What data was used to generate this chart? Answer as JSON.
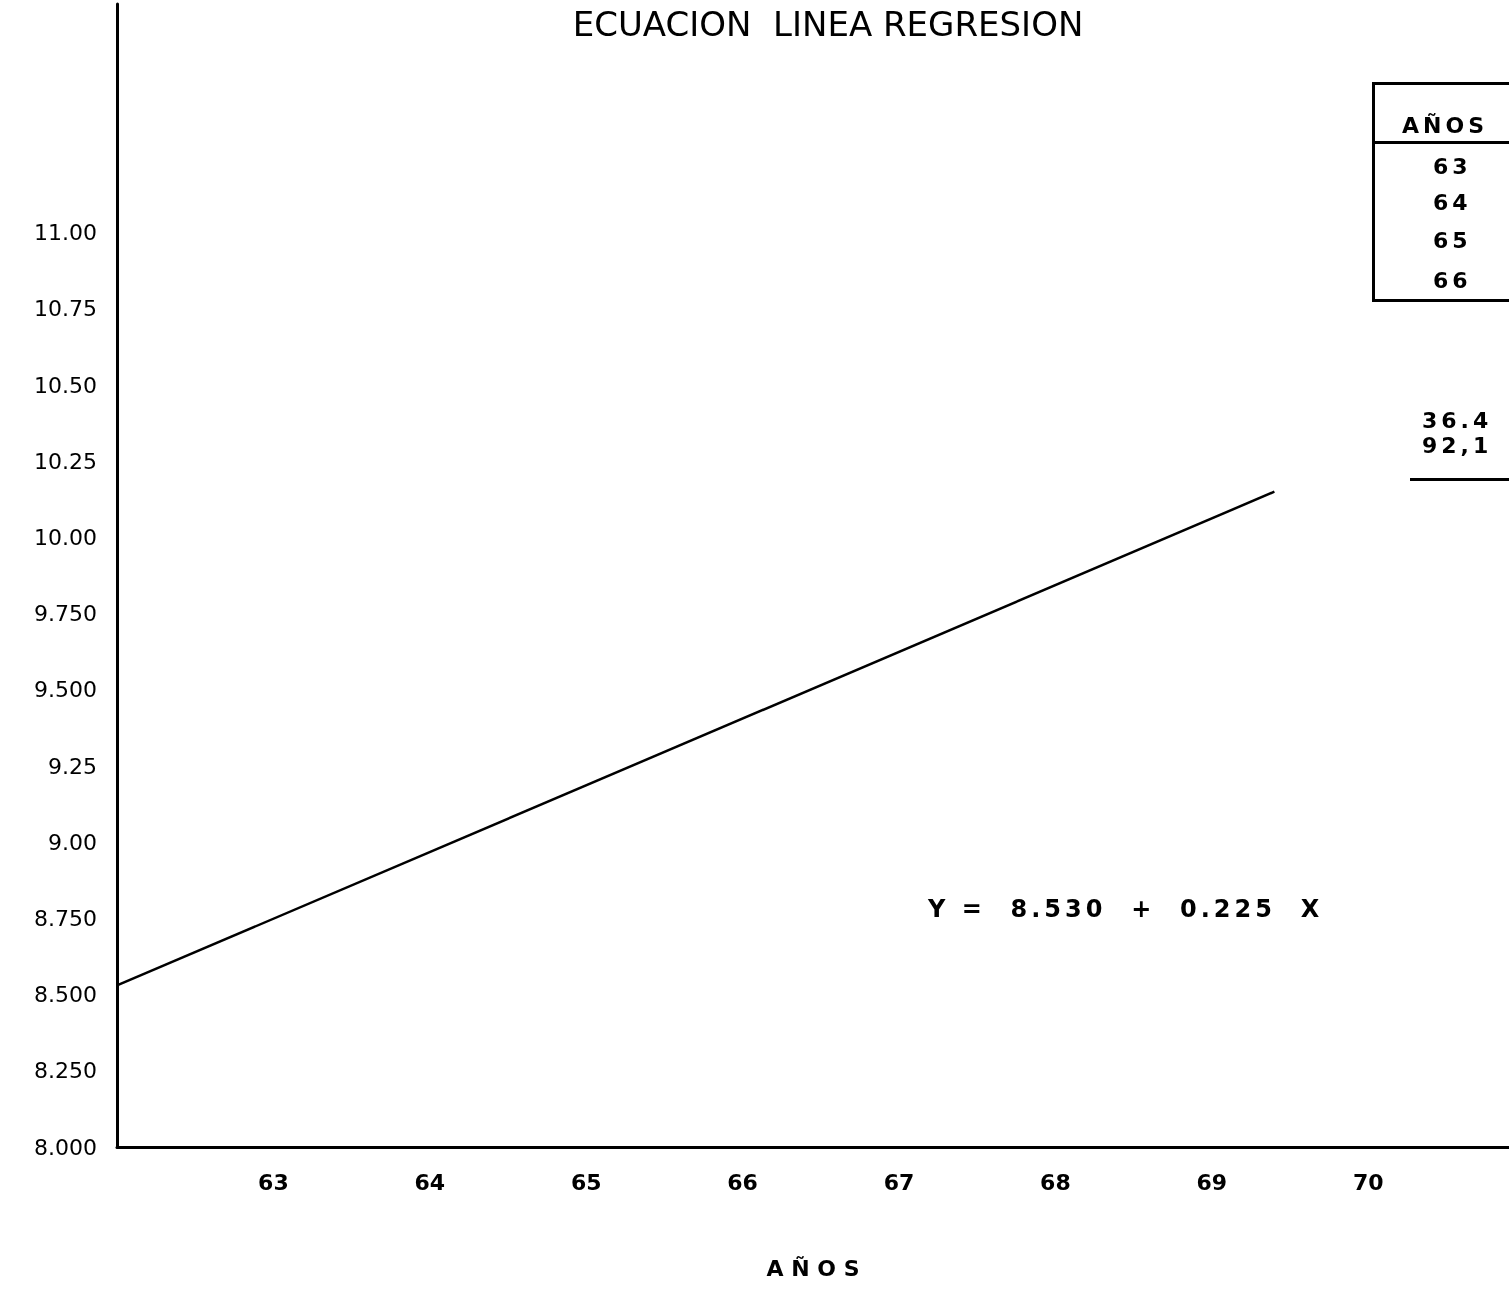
{
  "chart_data": {
    "type": "line",
    "title": "ECUACION  LINEA REGRESION",
    "xlabel": "A Ñ O S",
    "x": [
      62,
      69.4
    ],
    "series": [
      {
        "color": "#000000",
        "values": [
          8.53,
          10.15
        ]
      }
    ],
    "xlim": [
      62,
      70.9
    ],
    "xticks": [
      63,
      64,
      65,
      66,
      67,
      68,
      69,
      70
    ],
    "ylim": [
      8,
      11.75
    ],
    "yticks": [
      {
        "value": 8,
        "label": "8.000"
      },
      {
        "value": 8.25,
        "label": "8.250"
      },
      {
        "value": 8.5,
        "label": "8.500"
      },
      {
        "value": 8.75,
        "label": "8.750"
      },
      {
        "value": 9,
        "label": "9.00"
      },
      {
        "value": 9.25,
        "label": "9.25"
      },
      {
        "value": 9.5,
        "label": "9.500"
      },
      {
        "value": 9.75,
        "label": "9.750"
      },
      {
        "value": 10,
        "label": "10.00"
      },
      {
        "value": 10.25,
        "label": "10.25"
      },
      {
        "value": 10.5,
        "label": "10.50"
      },
      {
        "value": 10.75,
        "label": "10.75"
      },
      {
        "value": 11,
        "label": "11.00"
      }
    ],
    "annotations": [
      "Y =  8.530  +  0.225  X",
      "AÑOS",
      "63",
      "64",
      "65",
      "66",
      "36.4",
      "92,1"
    ],
    "marker": "none",
    "line_style": "solid",
    "grid": false
  }
}
